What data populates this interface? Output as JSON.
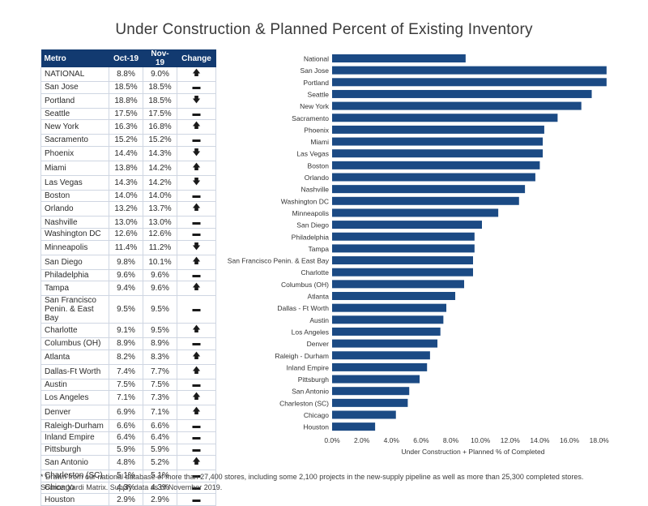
{
  "title": "Under Construction & Planned Percent of Existing Inventory",
  "table": {
    "headers": [
      "Metro",
      "Oct-19",
      "Nov-19",
      "Change"
    ],
    "rows": [
      [
        "NATIONAL",
        "8.8%",
        "9.0%",
        "up"
      ],
      [
        "San Jose",
        "18.5%",
        "18.5%",
        "flat"
      ],
      [
        "Portland",
        "18.8%",
        "18.5%",
        "down"
      ],
      [
        "Seattle",
        "17.5%",
        "17.5%",
        "flat"
      ],
      [
        "New York",
        "16.3%",
        "16.8%",
        "up"
      ],
      [
        "Sacramento",
        "15.2%",
        "15.2%",
        "flat"
      ],
      [
        "Phoenix",
        "14.4%",
        "14.3%",
        "down"
      ],
      [
        "Miami",
        "13.8%",
        "14.2%",
        "up"
      ],
      [
        "Las Vegas",
        "14.3%",
        "14.2%",
        "down"
      ],
      [
        "Boston",
        "14.0%",
        "14.0%",
        "flat"
      ],
      [
        "Orlando",
        "13.2%",
        "13.7%",
        "up"
      ],
      [
        "Nashville",
        "13.0%",
        "13.0%",
        "flat"
      ],
      [
        "Washington DC",
        "12.6%",
        "12.6%",
        "flat"
      ],
      [
        "Minneapolis",
        "11.4%",
        "11.2%",
        "down"
      ],
      [
        "San Diego",
        "9.8%",
        "10.1%",
        "up"
      ],
      [
        "Philadelphia",
        "9.6%",
        "9.6%",
        "flat"
      ],
      [
        "Tampa",
        "9.4%",
        "9.6%",
        "up"
      ],
      [
        "San Francisco Penin. & East Bay",
        "9.5%",
        "9.5%",
        "flat"
      ],
      [
        "Charlotte",
        "9.1%",
        "9.5%",
        "up"
      ],
      [
        "Columbus (OH)",
        "8.9%",
        "8.9%",
        "flat"
      ],
      [
        "Atlanta",
        "8.2%",
        "8.3%",
        "up"
      ],
      [
        "Dallas-Ft Worth",
        "7.4%",
        "7.7%",
        "up"
      ],
      [
        "Austin",
        "7.5%",
        "7.5%",
        "flat"
      ],
      [
        "Los Angeles",
        "7.1%",
        "7.3%",
        "up"
      ],
      [
        "Denver",
        "6.9%",
        "7.1%",
        "up"
      ],
      [
        "Raleigh-Durham",
        "6.6%",
        "6.6%",
        "flat"
      ],
      [
        "Inland Empire",
        "6.4%",
        "6.4%",
        "flat"
      ],
      [
        "Pittsburgh",
        "5.9%",
        "5.9%",
        "flat"
      ],
      [
        "San Antonio",
        "4.8%",
        "5.2%",
        "up"
      ],
      [
        "Charleston (SC)",
        "5.1%",
        "5.1%",
        "flat"
      ],
      [
        "Chicago",
        "4.3%",
        "4.3%",
        "flat"
      ],
      [
        "Houston",
        "2.9%",
        "2.9%",
        "flat"
      ]
    ],
    "change_symbols": {
      "up": "🡅",
      "down": "🡇",
      "flat": "▬"
    }
  },
  "chart_data": {
    "type": "bar",
    "orientation": "horizontal",
    "categories": [
      "National",
      "San Jose",
      "Portland",
      "Seattle",
      "New York",
      "Sacramento",
      "Phoenix",
      "Miami",
      "Las Vegas",
      "Boston",
      "Orlando",
      "Nashville",
      "Washington DC",
      "Minneapolis",
      "San Diego",
      "Philadelphia",
      "Tampa",
      "San Francisco Penin. & East Bay",
      "Charlotte",
      "Columbus (OH)",
      "Atlanta",
      "Dallas - Ft Worth",
      "Austin",
      "Los Angeles",
      "Denver",
      "Raleigh - Durham",
      "Inland Empire",
      "Pittsburgh",
      "San Antonio",
      "Charleston (SC)",
      "Chicago",
      "Houston"
    ],
    "values": [
      9.0,
      18.5,
      18.5,
      17.5,
      16.8,
      15.2,
      14.3,
      14.2,
      14.2,
      14.0,
      13.7,
      13.0,
      12.6,
      11.2,
      10.1,
      9.6,
      9.6,
      9.5,
      9.5,
      8.9,
      8.3,
      7.7,
      7.5,
      7.3,
      7.1,
      6.6,
      6.4,
      5.9,
      5.2,
      5.1,
      4.3,
      2.9
    ],
    "xlabel": "Under Construction + Planned % of Completed",
    "xlim": [
      0,
      19
    ],
    "xticks": [
      "0.0%",
      "2.0%",
      "4.0%",
      "6.0%",
      "8.0%",
      "10.0%",
      "12.0%",
      "14.0%",
      "16.0%",
      "18.0%"
    ],
    "xtick_values": [
      0,
      2,
      4,
      6,
      8,
      10,
      12,
      14,
      16,
      18
    ],
    "bar_color": "#1b4a84",
    "grid": false
  },
  "footnote": "* Drawn from our national database of more than 27,400 stores, including some 2,100 projects in the new-supply pipeline as well as more than 25,300 completed stores.",
  "source": "Source: Yardi Matrix. Supply data as of November 2019."
}
